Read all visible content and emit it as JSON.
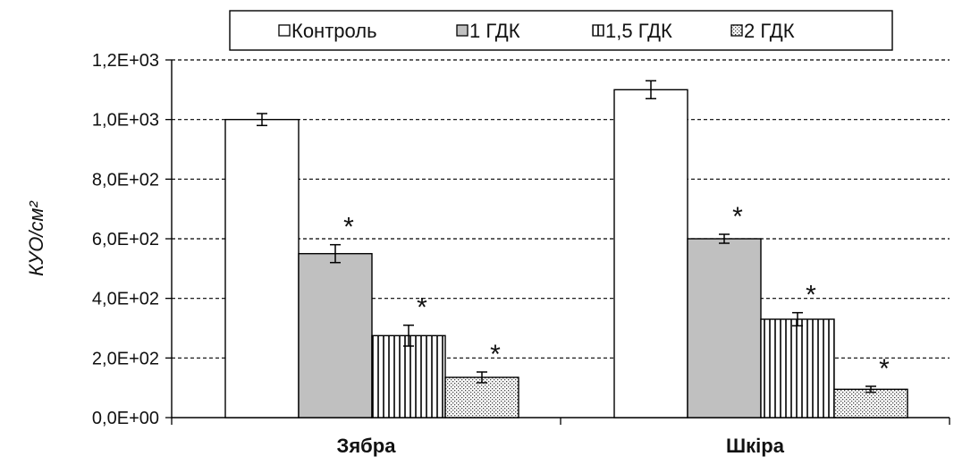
{
  "chart_data": {
    "type": "bar",
    "categories": [
      "Зябра",
      "Шкіра"
    ],
    "series": [
      {
        "name": "Контроль",
        "values": [
          1000,
          1100
        ],
        "errors": [
          20,
          30
        ],
        "pattern": "solid",
        "fill": "#ffffff",
        "significant": [
          false,
          false
        ]
      },
      {
        "name": "1 ГДК",
        "values": [
          550,
          600
        ],
        "errors": [
          30,
          15
        ],
        "pattern": "solid",
        "fill": "#c0c0c0",
        "significant": [
          true,
          true
        ]
      },
      {
        "name": "1,5 ГДК",
        "values": [
          275,
          330
        ],
        "errors": [
          35,
          22
        ],
        "pattern": "vertical-lines",
        "fill": "#ffffff",
        "significant": [
          true,
          true
        ]
      },
      {
        "name": "2 ГДК",
        "values": [
          135,
          95
        ],
        "errors": [
          18,
          10
        ],
        "pattern": "dots",
        "fill": "#ffffff",
        "significant": [
          true,
          true
        ]
      }
    ],
    "significance_marker": "*",
    "ylabel": "КУО/см²",
    "xlabel": "",
    "title": "",
    "ylim": [
      0,
      1200
    ],
    "yticks": [
      0,
      200,
      400,
      600,
      800,
      1000,
      1200
    ],
    "ytick_labels": [
      "0,0E+00",
      "2,0E+02",
      "4,0E+02",
      "6,0E+02",
      "8,0E+02",
      "1,0E+03",
      "1,2E+03"
    ],
    "grid": "horizontal dashed",
    "legend_position": "top"
  }
}
